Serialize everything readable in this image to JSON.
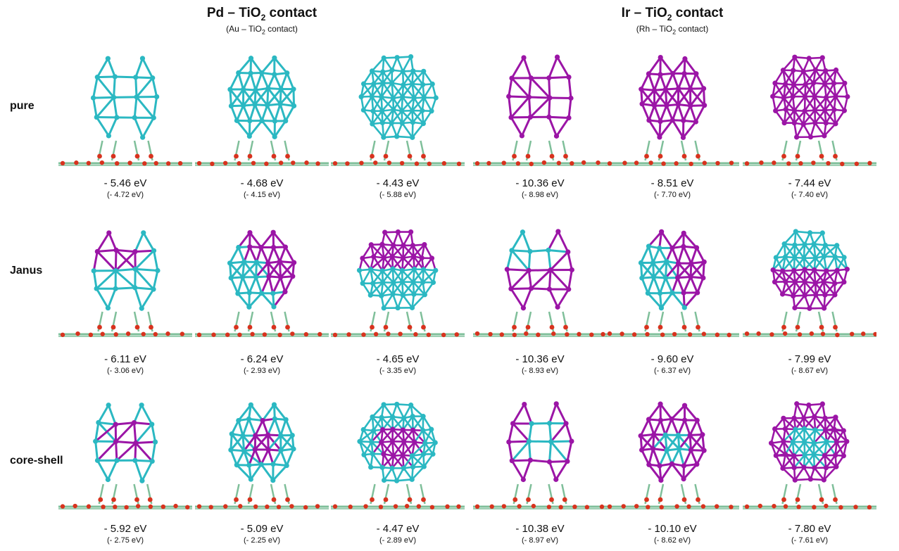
{
  "colors": {
    "cyan": "#2bb8c2",
    "magenta": "#9b15a6",
    "oxygen": "#d8321e",
    "substrate": "#7fbf9a"
  },
  "columns": [
    {
      "title": "Pd – TiO",
      "sub": "(Au – TiO",
      "subscript": "2",
      "tail_title": " contact",
      "tail_sub": " contact)"
    },
    {
      "title": "Ir – TiO",
      "sub": "(Rh – TiO",
      "subscript": "2",
      "tail_title": " contact",
      "tail_sub": " contact)"
    }
  ],
  "rows": [
    {
      "label": "pure"
    },
    {
      "label": "Janus"
    },
    {
      "label": "core-shell"
    }
  ],
  "cells": [
    [
      {
        "energy": "- 5.46 eV",
        "alt": "(- 4.72 eV)",
        "structure": "pure-cyan-small"
      },
      {
        "energy": "- 4.68 eV",
        "alt": "(- 4.15 eV)",
        "structure": "pure-cyan-medium"
      },
      {
        "energy": "- 4.43 eV",
        "alt": "(- 5.88 eV)",
        "structure": "pure-cyan-large"
      },
      {
        "energy": "- 10.36 eV",
        "alt": "(- 8.98 eV)",
        "structure": "pure-magenta-small"
      },
      {
        "energy": "- 8.51 eV",
        "alt": "(- 7.70 eV)",
        "structure": "pure-magenta-medium"
      },
      {
        "energy": "- 7.44 eV",
        "alt": "(- 7.40 eV)",
        "structure": "pure-magenta-large"
      }
    ],
    [
      {
        "energy": "- 6.11 eV",
        "alt": "(- 3.06 eV)",
        "structure": "janus-small"
      },
      {
        "energy": "- 6.24 eV",
        "alt": "(- 2.93 eV)",
        "structure": "janus-medium"
      },
      {
        "energy": "- 4.65 eV",
        "alt": "(- 3.35 eV)",
        "structure": "janus-large"
      },
      {
        "energy": "- 10.36 eV",
        "alt": "(- 8.93 eV)",
        "structure": "janus-small-inv"
      },
      {
        "energy": "- 9.60 eV",
        "alt": "(- 6.37 eV)",
        "structure": "janus-medium-inv"
      },
      {
        "energy": "- 7.99 eV",
        "alt": "(- 8.67 eV)",
        "structure": "janus-large-inv"
      }
    ],
    [
      {
        "energy": "- 5.92 eV",
        "alt": "(- 2.75 eV)",
        "structure": "coreshell-small"
      },
      {
        "energy": "- 5.09 eV",
        "alt": "(- 2.25 eV)",
        "structure": "coreshell-medium"
      },
      {
        "energy": "- 4.47 eV",
        "alt": "(- 2.89 eV)",
        "structure": "coreshell-large"
      },
      {
        "energy": "- 10.38 eV",
        "alt": "(- 8.97 eV)",
        "structure": "coreshell-small-inv"
      },
      {
        "energy": "- 10.10 eV",
        "alt": "(- 8.62 eV)",
        "structure": "coreshell-medium-inv"
      },
      {
        "energy": "- 7.80 eV",
        "alt": "(- 7.61 eV)",
        "structure": "coreshell-large-inv"
      }
    ]
  ]
}
